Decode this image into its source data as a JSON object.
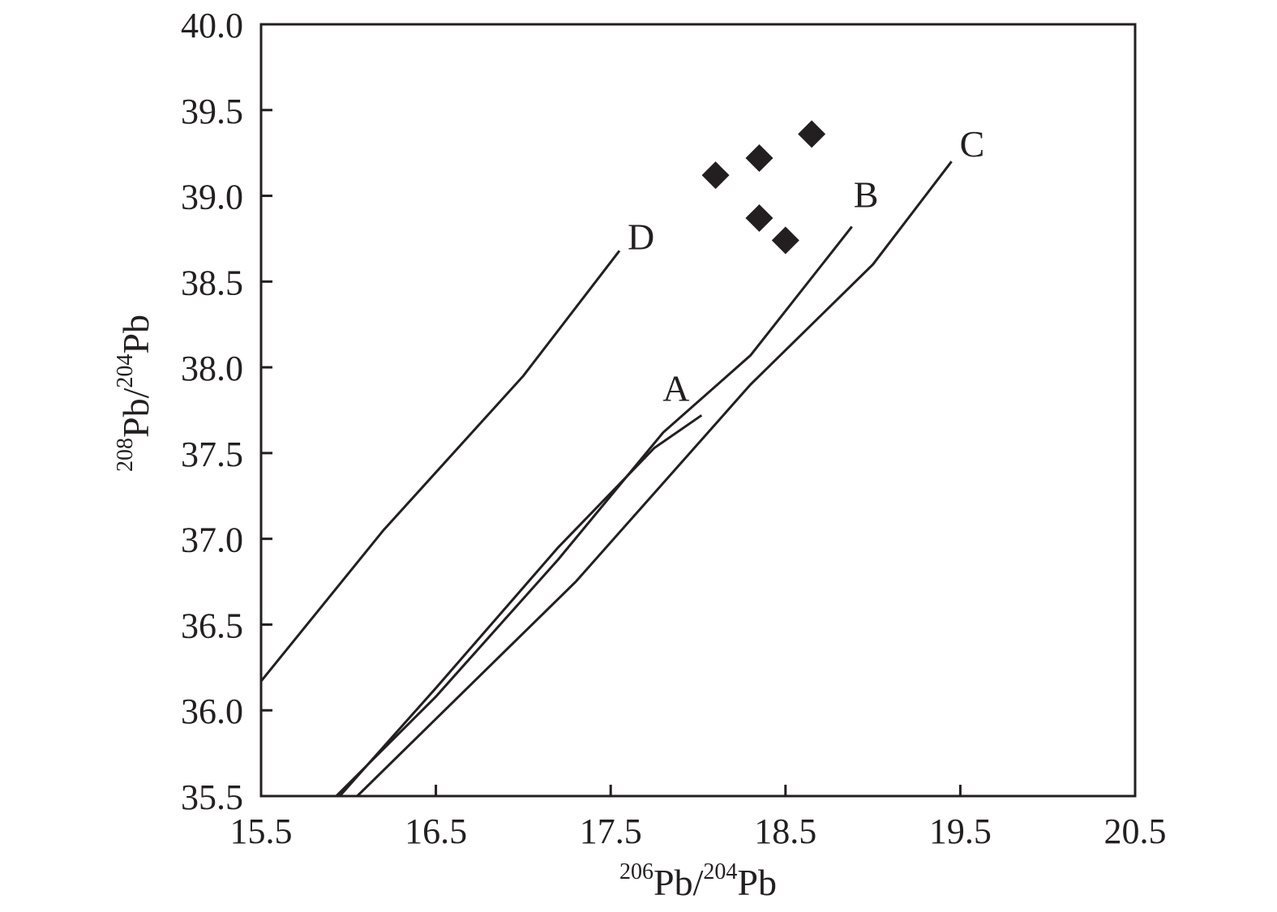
{
  "chart_data": {
    "type": "line",
    "xlabel": {
      "sup1": "206",
      "base1": "Pb/",
      "sup2": "204",
      "base2": "Pb"
    },
    "ylabel": {
      "sup1": "208",
      "base1": "Pb/",
      "sup2": "204",
      "base2": "Pb"
    },
    "xlim": [
      15.5,
      20.5
    ],
    "ylim": [
      35.5,
      40.0
    ],
    "x_ticks": [
      "15.5",
      "16.5",
      "17.5",
      "18.5",
      "19.5",
      "20.5"
    ],
    "y_ticks": [
      "35.5",
      "36.0",
      "36.5",
      "37.0",
      "37.5",
      "38.0",
      "38.5",
      "39.0",
      "39.5",
      "40.0"
    ],
    "grid": false,
    "series": [
      {
        "name": "A",
        "points": [
          [
            15.95,
            35.5
          ],
          [
            16.5,
            36.13
          ],
          [
            17.2,
            36.95
          ],
          [
            17.75,
            37.53
          ],
          [
            18.02,
            37.72
          ]
        ]
      },
      {
        "name": "B",
        "points": [
          [
            15.93,
            35.5
          ],
          [
            16.5,
            36.08
          ],
          [
            17.2,
            36.88
          ],
          [
            17.8,
            37.62
          ],
          [
            18.3,
            38.07
          ],
          [
            18.88,
            38.82
          ]
        ]
      },
      {
        "name": "C",
        "points": [
          [
            16.05,
            35.5
          ],
          [
            16.5,
            35.95
          ],
          [
            17.3,
            36.75
          ],
          [
            18.3,
            37.9
          ],
          [
            19.0,
            38.6
          ],
          [
            19.45,
            39.2
          ]
        ]
      },
      {
        "name": "D",
        "points": [
          [
            15.5,
            36.17
          ],
          [
            16.2,
            37.05
          ],
          [
            17.0,
            37.95
          ],
          [
            17.55,
            38.68
          ]
        ]
      }
    ],
    "scatter_points": [
      [
        18.1,
        39.12
      ],
      [
        18.35,
        39.22
      ],
      [
        18.65,
        39.36
      ],
      [
        18.35,
        38.87
      ],
      [
        18.5,
        38.74
      ]
    ],
    "colors": {
      "line": "#231f20",
      "marker": "#231f20",
      "frame": "#231f20"
    }
  }
}
